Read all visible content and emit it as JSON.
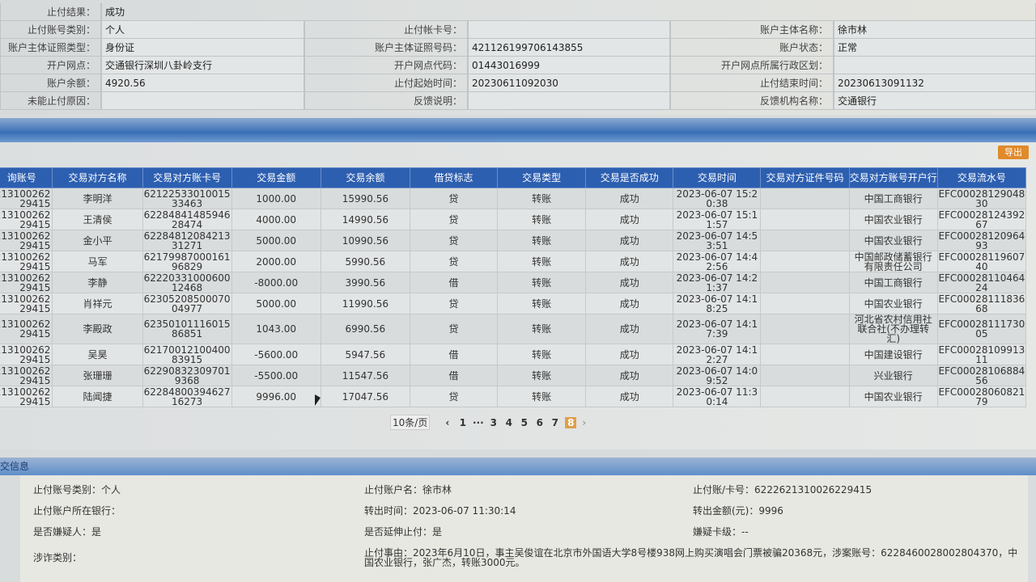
{
  "top": {
    "result": {
      "label": "止付结果：",
      "value": "成功"
    },
    "rows": [
      [
        {
          "label": "止付账号类别：",
          "value": "个人"
        },
        {
          "label": "止付帐卡号：",
          "value": ""
        },
        {
          "label": "账户主体名称：",
          "value": "徐市林"
        }
      ],
      [
        {
          "label": "账户主体证照类型：",
          "value": "身份证"
        },
        {
          "label": "账户主体证照号码：",
          "value": "421126199706143855"
        },
        {
          "label": "账户状态：",
          "value": "正常"
        }
      ],
      [
        {
          "label": "开户网点：",
          "value": "交通银行深圳八卦岭支行"
        },
        {
          "label": "开户网点代码：",
          "value": "01443016999"
        },
        {
          "label": "开户网点所属行政区划：",
          "value": ""
        }
      ],
      [
        {
          "label": "账户余额：",
          "value": "4920.56"
        },
        {
          "label": "止付起始时间：",
          "value": "20230611092030"
        },
        {
          "label": "止付结束时间：",
          "value": "20230613091132"
        }
      ],
      [
        {
          "label": "未能止付原因：",
          "value": ""
        },
        {
          "label": "反馈说明：",
          "value": ""
        },
        {
          "label": "反馈机构名称：",
          "value": "交通银行"
        }
      ]
    ]
  },
  "export_label": "导出",
  "table": {
    "headers": [
      "询账号",
      "交易对方名称",
      "交易对方账卡号",
      "交易金额",
      "交易余额",
      "借贷标志",
      "交易类型",
      "交易是否成功",
      "交易时间",
      "交易对方证件号码",
      "交易对方账号开户行",
      "交易流水号"
    ],
    "rows": [
      [
        "213100262\n29415",
        "李明洋",
        "62122533010015\n33463",
        "1000.00",
        "15990.56",
        "贷",
        "转账",
        "成功",
        "2023-06-07 15:2\n0:38",
        "",
        "中国工商银行",
        "EFC00028129048\n30"
      ],
      [
        "213100262\n29415",
        "王清侯",
        "62284841485946\n28474",
        "4000.00",
        "14990.56",
        "贷",
        "转账",
        "成功",
        "2023-06-07 15:1\n1:57",
        "",
        "中国农业银行",
        "EFC00028124392\n67"
      ],
      [
        "213100262\n29415",
        "金小平",
        "62284812084213\n31271",
        "5000.00",
        "10990.56",
        "贷",
        "转账",
        "成功",
        "2023-06-07 14:5\n3:51",
        "",
        "中国农业银行",
        "EFC00028120964\n93"
      ],
      [
        "213100262\n29415",
        "马军",
        "62179987000161\n96829",
        "2000.00",
        "5990.56",
        "贷",
        "转账",
        "成功",
        "2023-06-07 14:4\n2:56",
        "",
        "中国邮政储蓄银行\n有限责任公司",
        "EFC00028119607\n40"
      ],
      [
        "213100262\n29415",
        "李静",
        "62220331000600\n12468",
        "-8000.00",
        "3990.56",
        "借",
        "转账",
        "成功",
        "2023-06-07 14:2\n1:37",
        "",
        "中国工商银行",
        "EFC00028110464\n24"
      ],
      [
        "213100262\n29415",
        "肖祥元",
        "62305208500070\n04977",
        "5000.00",
        "11990.56",
        "贷",
        "转账",
        "成功",
        "2023-06-07 14:1\n8:25",
        "",
        "中国农业银行",
        "EFC00028111836\n68"
      ],
      [
        "213100262\n29415",
        "李殿政",
        "62350101116015\n86851",
        "1043.00",
        "6990.56",
        "贷",
        "转账",
        "成功",
        "2023-06-07 14:1\n7:39",
        "",
        "河北省农村信用社\n联合社(不办理转\n汇)",
        "EFC00028111730\n05"
      ],
      [
        "213100262\n29415",
        "吴昊",
        "62170012100400\n83915",
        "-5600.00",
        "5947.56",
        "借",
        "转账",
        "成功",
        "2023-06-07 14:1\n2:27",
        "",
        "中国建设银行",
        "EFC00028109913\n11"
      ],
      [
        "213100262\n29415",
        "张珊珊",
        "62290832309701\n9368",
        "-5500.00",
        "11547.56",
        "借",
        "转账",
        "成功",
        "2023-06-07 14:0\n9:52",
        "",
        "兴业银行",
        "EFC00028106884\n56"
      ],
      [
        "213100262\n29415",
        "陆闻捷",
        "62284800394627\n16273",
        "9996.00",
        "17047.56",
        "贷",
        "转账",
        "成功",
        "2023-06-07 11:3\n0:14",
        "",
        "中国农业银行",
        "EFC00028060821\n79"
      ]
    ]
  },
  "pager": {
    "page_size": "10条/页",
    "prev": "‹",
    "pages": [
      "1",
      "···",
      "3",
      "4",
      "5",
      "6",
      "7"
    ],
    "current": "8",
    "next": "›"
  },
  "bottom": {
    "title": "交信息",
    "items": [
      "止付账号类别：个人",
      "止付账户名：徐市林",
      "止付账/卡号：6222621310026229415",
      "止付账户所在银行：",
      "转出时间：2023-06-07 11:30:14",
      "转出金额(元)：9996",
      "是否嫌疑人：是",
      "是否延伸止付：是",
      "嫌疑卡级：--",
      "涉诈类别："
    ],
    "reason": "止付事由：2023年6月10日，事主吴俊谊在北京市外国语大学8号楼938网上购买演唱会门票被骗20368元，涉案账号：6228460028002804370，中国农业银行，张广杰，转账3000元。"
  },
  "colors": {
    "header_blue": "#2d5fb0",
    "export_orange": "#e08a2a",
    "current_page": "#e0a04a"
  }
}
